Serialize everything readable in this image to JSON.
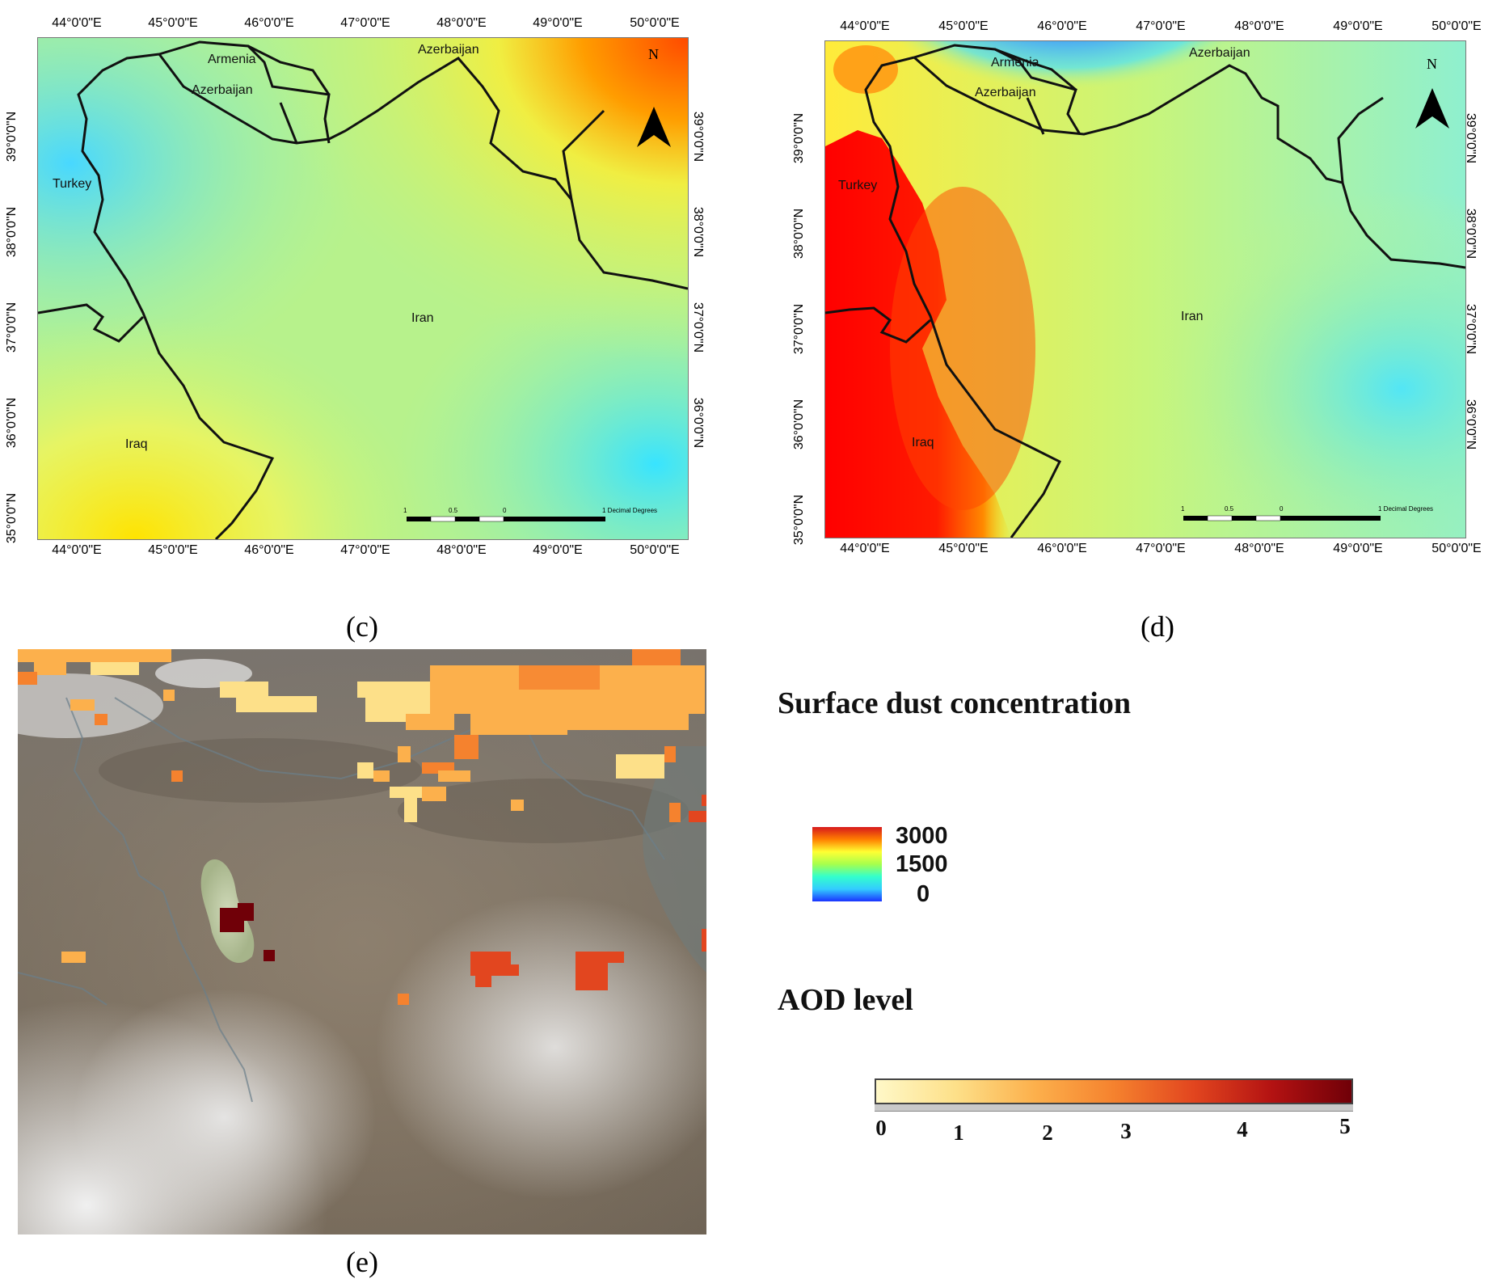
{
  "panel_c": {
    "caption": "(c)",
    "lon_labels": [
      "44°0'0\"E",
      "45°0'0\"E",
      "46°0'0\"E",
      "47°0'0\"E",
      "48°0'0\"E",
      "49°0'0\"E",
      "50°0'0\"E"
    ],
    "lat_labels": [
      "39°0'0\"N",
      "38°0'0\"N",
      "37°0'0\"N",
      "36°0'0\"N",
      "35°0'0\"N"
    ],
    "countries": {
      "armenia": "Armenia",
      "azerbaijan_1": "Azerbaijan",
      "azerbaijan_2": "Azerbaijan",
      "turkey": "Turkey",
      "iran": "Iran",
      "iraq": "Iraq"
    },
    "scale_labels": [
      "1",
      "0.5",
      "0",
      "1 Decimal Degrees"
    ],
    "north": "N"
  },
  "panel_d": {
    "caption": "(d)",
    "lon_labels": [
      "44°0'0\"E",
      "45°0'0\"E",
      "46°0'0\"E",
      "47°0'0\"E",
      "48°0'0\"E",
      "49°0'0\"E",
      "50°0'0\"E"
    ],
    "lat_labels": [
      "39°0'0\"N",
      "38°0'0\"N",
      "37°0'0\"N",
      "36°0'0\"N",
      "35°0'0\"N"
    ],
    "countries": {
      "armenia": "Armenia",
      "azerbaijan_1": "Azerbaijan",
      "azerbaijan_2": "Azerbaijan",
      "turkey": "Turkey",
      "iran": "Iran",
      "iraq": "Iraq"
    },
    "scale_labels": [
      "1",
      "0.5",
      "0",
      "1 Decimal Degrees"
    ],
    "north": "N"
  },
  "panel_e": {
    "caption": "(e)"
  },
  "legend_dust": {
    "title": "Surface dust concentration",
    "max": "3000",
    "mid": "1500",
    "min": "0",
    "colors": [
      "#d7191c",
      "#ff7f00",
      "#ffff33",
      "#a6ff4d",
      "#33ffcc",
      "#33ccff",
      "#1a33ff"
    ]
  },
  "legend_aod": {
    "title": "AOD level",
    "ticks": [
      "0",
      "1",
      "2",
      "3",
      "4",
      "5"
    ],
    "colors": [
      "#fff8c8",
      "#fde089",
      "#fcb04c",
      "#f5822e",
      "#e2461f",
      "#b31212",
      "#700008"
    ]
  }
}
